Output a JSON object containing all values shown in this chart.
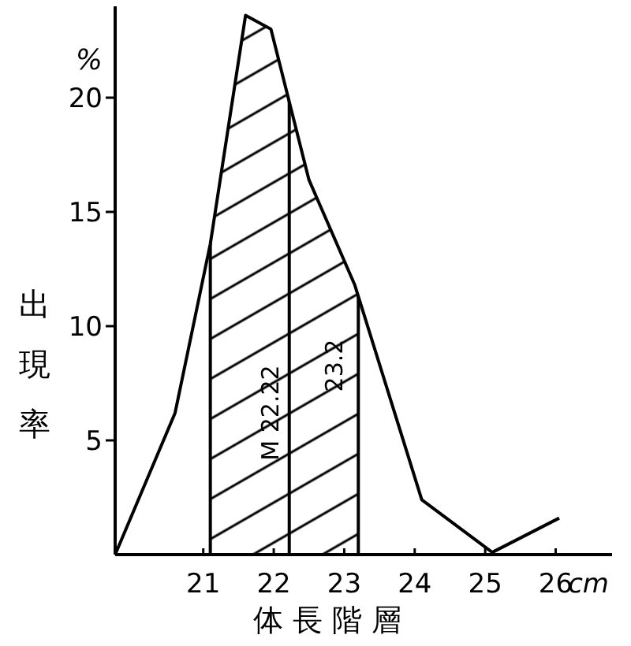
{
  "chart_data": {
    "type": "line",
    "xlabel": "体長階層",
    "ylabel": "出現率",
    "annotations": [
      "%",
      "cm"
    ],
    "x": [
      19.75,
      20.6,
      21.1,
      21.6,
      21.96,
      22.5,
      23.15,
      24.1,
      25.1,
      26.05
    ],
    "values": [
      0,
      6.2,
      13.6,
      23.6,
      23.0,
      16.4,
      11.8,
      2.4,
      0.1,
      1.6
    ],
    "color": "#000000",
    "marker": "none",
    "line_style": "solid",
    "grid": false,
    "xlim": [
      19.75,
      26.8
    ],
    "ylim": [
      0,
      24
    ],
    "xticks": [
      21,
      22,
      23,
      24,
      25,
      26
    ],
    "yticks": [
      5,
      10,
      15,
      20
    ],
    "ref_lines": [
      {
        "axis": "x",
        "value": 21.1
      },
      {
        "axis": "x",
        "value": 22.22,
        "label": "M 22.22"
      },
      {
        "axis": "x",
        "value": 23.2,
        "label": "23.2"
      }
    ],
    "bands": [
      {
        "axis": "x",
        "from": 21.1,
        "to": 23.2
      }
    ]
  }
}
